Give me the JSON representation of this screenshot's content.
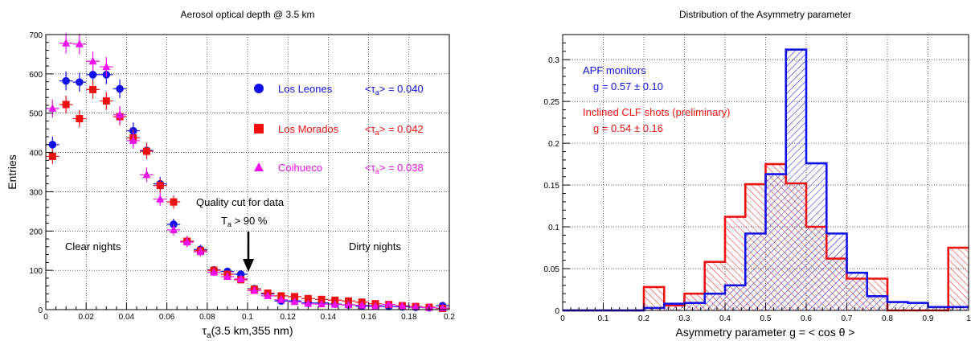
{
  "chart_data": [
    {
      "type": "scatter",
      "title": "Aerosol optical depth @ 3.5 km",
      "xlabel_main": "τ",
      "xlabel_sub": "a",
      "xlabel_rest": "(3.5 km,355 nm)",
      "ylabel": "Entries",
      "xlim": [
        0,
        0.2
      ],
      "ylim": [
        0,
        700
      ],
      "xticks": [
        0,
        0.02,
        0.04,
        0.06,
        0.08,
        0.1,
        0.12,
        0.14,
        0.16,
        0.18,
        0.2
      ],
      "xtick_labels": [
        "0",
        "0.02",
        "0.04",
        "0.06",
        "0.08",
        "0.1",
        "0.12",
        "0.14",
        "0.16",
        "0.18",
        "0.2"
      ],
      "yticks": [
        0,
        100,
        200,
        300,
        400,
        500,
        600,
        700
      ],
      "ytick_labels": [
        "0",
        "100",
        "200",
        "300",
        "400",
        "500",
        "600",
        "700"
      ],
      "grid": true,
      "series": [
        {
          "name": "Los Leones",
          "mean_label": "<τ",
          "mean_sub": "a",
          "mean_value": "> = 0.040",
          "color": "#1010e8",
          "marker": "circle",
          "x": [
            0.00333,
            0.01,
            0.01667,
            0.02333,
            0.03,
            0.03667,
            0.04333,
            0.05,
            0.05667,
            0.06333,
            0.07,
            0.07667,
            0.08333,
            0.09,
            0.09667,
            0.10333,
            0.11,
            0.11667,
            0.12333,
            0.13,
            0.13667,
            0.14333,
            0.15,
            0.15667,
            0.16333,
            0.17,
            0.17667,
            0.18333,
            0.19,
            0.19667
          ],
          "y": [
            420,
            582,
            579,
            598,
            598,
            562,
            455,
            405,
            320,
            217,
            174,
            153,
            101,
            97,
            90,
            53,
            40,
            22,
            22,
            17,
            17,
            14,
            12,
            9,
            10,
            8,
            7,
            6,
            5,
            10
          ]
        },
        {
          "name": "Los Morados",
          "mean_label": "<τ",
          "mean_sub": "a",
          "mean_value": "> = 0.042",
          "color": "#ee1111",
          "marker": "square",
          "x": [
            0.00333,
            0.01,
            0.01667,
            0.02333,
            0.03,
            0.03667,
            0.04333,
            0.05,
            0.05667,
            0.06333,
            0.07,
            0.07667,
            0.08333,
            0.09,
            0.09667,
            0.10333,
            0.11,
            0.11667,
            0.12333,
            0.13,
            0.13667,
            0.14333,
            0.15,
            0.15667,
            0.16333,
            0.17,
            0.17667,
            0.18333,
            0.19,
            0.19667
          ],
          "y": [
            390,
            522,
            486,
            560,
            531,
            491,
            437,
            403,
            316,
            274,
            174,
            150,
            100,
            90,
            76,
            52,
            42,
            35,
            33,
            28,
            26,
            24,
            22,
            19,
            15,
            13,
            10,
            8,
            6,
            3
          ]
        },
        {
          "name": "Coihueco",
          "mean_label": "<τ",
          "mean_sub": "a",
          "mean_value": "> = 0.038",
          "color": "#ee11ee",
          "marker": "triangle",
          "x": [
            0.00333,
            0.01,
            0.01667,
            0.02333,
            0.03,
            0.03667,
            0.04333,
            0.05,
            0.05667,
            0.06333,
            0.07,
            0.07667,
            0.08333,
            0.09,
            0.09667,
            0.10333,
            0.11,
            0.11667,
            0.12333,
            0.13,
            0.13667,
            0.14333,
            0.15,
            0.15667,
            0.16333,
            0.17,
            0.17667,
            0.18333,
            0.19,
            0.19667
          ],
          "y": [
            512,
            678,
            676,
            632,
            618,
            496,
            430,
            343,
            281,
            203,
            172,
            147,
            95,
            84,
            78,
            48,
            35,
            25,
            20,
            15,
            14,
            13,
            12,
            11,
            8,
            13,
            9,
            7,
            5,
            4
          ]
        }
      ],
      "annotations": {
        "quality_cut": "Quality cut for data",
        "ta_main": "T",
        "ta_sub": "a",
        "ta_rest": " > 90 %",
        "clear": "Clear nights",
        "dirty": "Dirty nights",
        "arrow_x": 0.1
      }
    },
    {
      "type": "bar",
      "title": "Distribution of the Asymmetry parameter",
      "xlabel": "Asymmetry parameter g = < cos θ >",
      "ylabel": "",
      "xlim": [
        0,
        1
      ],
      "ylim": [
        0,
        0.33
      ],
      "xticks": [
        0,
        0.1,
        0.2,
        0.3,
        0.4,
        0.5,
        0.6,
        0.7,
        0.8,
        0.9,
        1
      ],
      "xtick_labels": [
        "0",
        "0.1",
        "0.2",
        "0.3",
        "0.4",
        "0.5",
        "0.6",
        "0.7",
        "0.8",
        "0.9",
        "1"
      ],
      "yticks": [
        0,
        0.05,
        0.1,
        0.15,
        0.2,
        0.25,
        0.3
      ],
      "ytick_labels": [
        "0",
        "0.05",
        "0.1",
        "0.15",
        "0.2",
        "0.25",
        "0.3"
      ],
      "grid": true,
      "bin_edges": [
        0,
        0.05,
        0.1,
        0.15,
        0.2,
        0.25,
        0.3,
        0.35,
        0.4,
        0.45,
        0.5,
        0.55,
        0.6,
        0.65,
        0.7,
        0.75,
        0.8,
        0.85,
        0.9,
        0.95,
        1.0
      ],
      "series": [
        {
          "name": "APF monitors",
          "stat": "g = 0.57",
          "stat_err": "0.10",
          "color": "#1010e8",
          "values": [
            0,
            0,
            0,
            0,
            0.003,
            0.008,
            0.009,
            0.02,
            0.03,
            0.092,
            0.163,
            0.312,
            0.176,
            0.092,
            0.045,
            0.017,
            0.01,
            0.009,
            0.004,
            0.004
          ]
        },
        {
          "name": "Inclined CLF shots (preliminary)",
          "stat": "g = 0.54",
          "stat_err": "0.16",
          "color": "#ee1111",
          "values": [
            0,
            0,
            0,
            0,
            0.028,
            0.006,
            0.02,
            0.058,
            0.112,
            0.151,
            0.175,
            0.152,
            0.1,
            0.062,
            0.038,
            0.038,
            0,
            0,
            0,
            0.075
          ]
        }
      ]
    }
  ]
}
